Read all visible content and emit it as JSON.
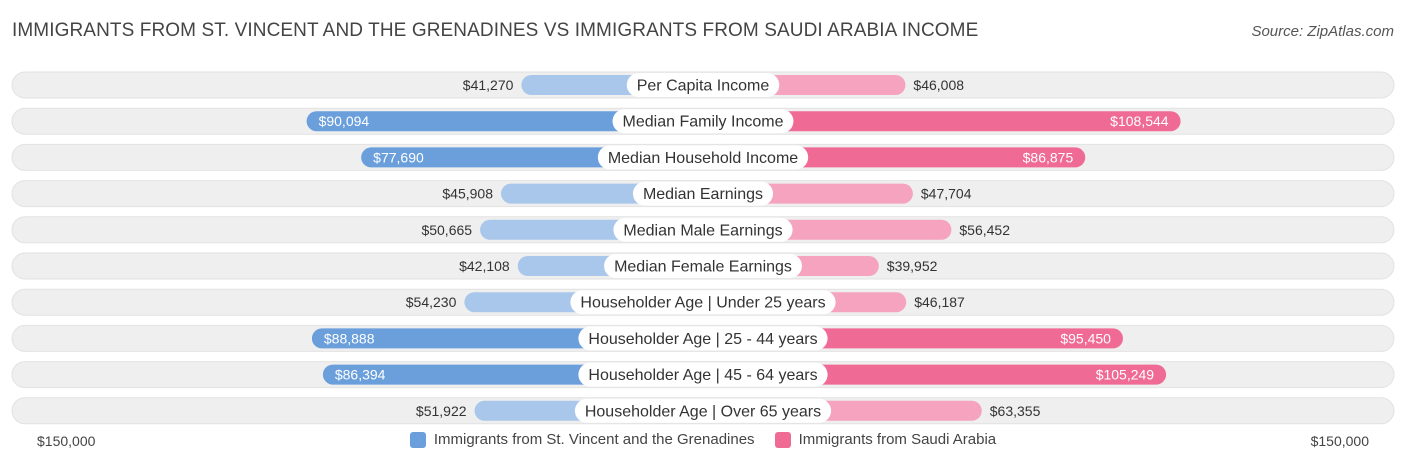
{
  "header": {
    "title": "IMMIGRANTS FROM ST. VINCENT AND THE GRENADINES VS IMMIGRANTS FROM SAUDI ARABIA INCOME",
    "source": "Source: ZipAtlas.com"
  },
  "colors": {
    "left_strong": "#6a9fdc",
    "left_light": "#a9c7ea",
    "right_strong": "#f06a96",
    "right_light": "#f5a3bf",
    "track": "#efefef"
  },
  "chart_data": {
    "type": "bar",
    "orientation": "horizontal-diverging",
    "title": "IMMIGRANTS FROM ST. VINCENT AND THE GRENADINES VS IMMIGRANTS FROM SAUDI ARABIA INCOME",
    "max_value": 150000,
    "axis_left_label": "$150,000",
    "axis_right_label": "$150,000",
    "categories": [
      "Per Capita Income",
      "Median Family Income",
      "Median Household Income",
      "Median Earnings",
      "Median Male Earnings",
      "Median Female Earnings",
      "Householder Age | Under 25 years",
      "Householder Age | 25 - 44 years",
      "Householder Age | 45 - 64 years",
      "Householder Age | Over 65 years"
    ],
    "series": [
      {
        "name": "Immigrants from St. Vincent and the Grenadines",
        "values": [
          41270,
          90094,
          77690,
          45908,
          50665,
          42108,
          54230,
          88888,
          86394,
          51922
        ],
        "labels": [
          "$41,270",
          "$90,094",
          "$77,690",
          "$45,908",
          "$50,665",
          "$42,108",
          "$54,230",
          "$88,888",
          "$86,394",
          "$51,922"
        ]
      },
      {
        "name": "Immigrants from Saudi Arabia",
        "values": [
          46008,
          108544,
          86875,
          47704,
          56452,
          39952,
          46187,
          95450,
          105249,
          63355
        ],
        "labels": [
          "$46,008",
          "$108,544",
          "$86,875",
          "$47,704",
          "$56,452",
          "$39,952",
          "$46,187",
          "$95,450",
          "$105,249",
          "$63,355"
        ]
      }
    ]
  }
}
